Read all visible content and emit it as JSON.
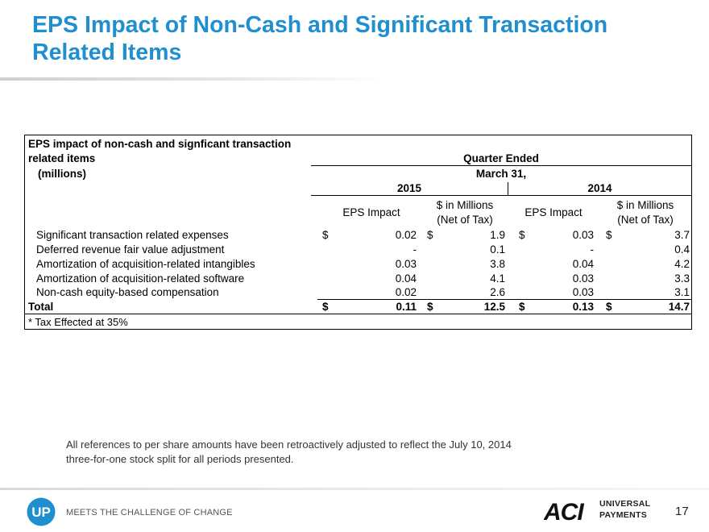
{
  "title": "EPS Impact of Non-Cash and Significant Transaction Related Items",
  "table": {
    "caption_line1": "EPS impact of non-cash and signficant transaction",
    "caption_line2": "related items",
    "units": "(millions)",
    "period_header": "Quarter Ended",
    "period_date": "March 31,",
    "year_2015": "2015",
    "year_2014": "2014",
    "col_eps_impact": "EPS Impact",
    "col_dollars_line1": "$ in Millions",
    "col_dollars_line2": "(Net of Tax)",
    "currency": "$",
    "rows": [
      {
        "label": "Significant transaction related expenses",
        "eps_2015": "0.02",
        "mil_2015": "1.9",
        "eps_2014": "0.03",
        "mil_2014": "3.7"
      },
      {
        "label": "Deferred revenue fair value adjustment",
        "eps_2015": "-",
        "mil_2015": "0.1",
        "eps_2014": "-",
        "mil_2014": "0.4"
      },
      {
        "label": "Amortization of acquisition-related intangibles",
        "eps_2015": "0.03",
        "mil_2015": "3.8",
        "eps_2014": "0.04",
        "mil_2014": "4.2"
      },
      {
        "label": "Amortization of acquisition-related software",
        "eps_2015": "0.04",
        "mil_2015": "4.1",
        "eps_2014": "0.03",
        "mil_2014": "3.3"
      },
      {
        "label": "Non-cash equity-based compensation",
        "eps_2015": "0.02",
        "mil_2015": "2.6",
        "eps_2014": "0.03",
        "mil_2014": "3.1"
      }
    ],
    "total": {
      "label": "Total",
      "eps_2015": "0.11",
      "mil_2015": "12.5",
      "eps_2014": "0.13",
      "mil_2014": "14.7"
    },
    "footnote": "* Tax Effected at 35%"
  },
  "note_line1": "All references to per share amounts have been retroactively adjusted to reflect the July 10, 2014",
  "note_line2": "three-for-one stock split for all periods presented.",
  "footer": {
    "up_logo_text": "UP",
    "tagline": "MEETS THE CHALLENGE OF CHANGE",
    "aci_logo_text": "ACI",
    "brand_line1": "UNIVERSAL",
    "brand_line2": "PAYMENTS",
    "page_number": "17"
  },
  "colors": {
    "title": "#1f8fd0",
    "up_logo": "#1f8fd0",
    "aci_logo": "#111111"
  }
}
